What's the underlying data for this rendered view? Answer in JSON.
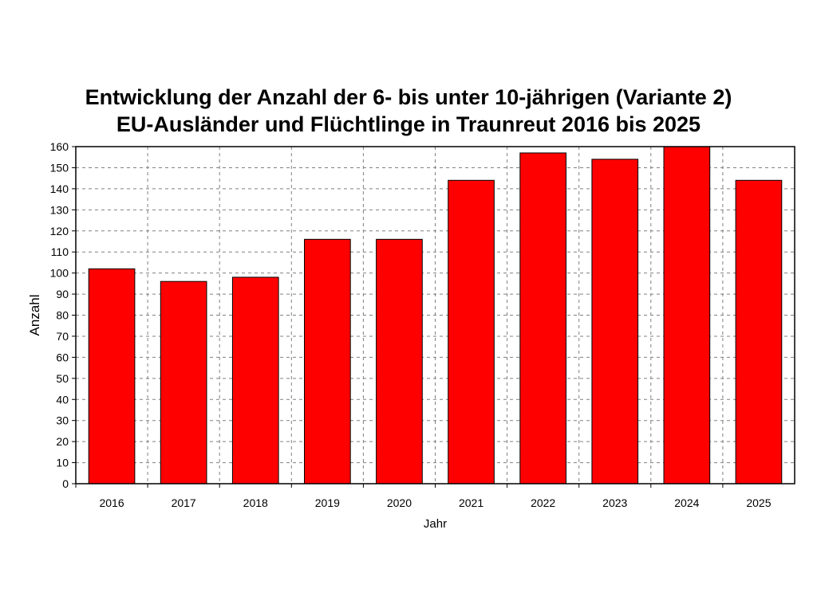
{
  "chart_data": {
    "type": "bar",
    "title": "Entwicklung der Anzahl der 6- bis unter 10-jährigen (Variante 2)",
    "subtitle": "EU-Ausländer und Flüchtlinge in Traunreut 2016 bis 2025",
    "xlabel": "Jahr",
    "ylabel": "Anzahl",
    "categories": [
      "2016",
      "2017",
      "2018",
      "2019",
      "2020",
      "2021",
      "2022",
      "2023",
      "2024",
      "2025"
    ],
    "values": [
      102,
      96,
      98,
      116,
      116,
      144,
      157,
      154,
      160,
      144
    ],
    "ylim": [
      0,
      160
    ],
    "yticks": [
      0,
      10,
      20,
      30,
      40,
      50,
      60,
      70,
      80,
      90,
      100,
      110,
      120,
      130,
      140,
      150,
      160
    ],
    "grid": true,
    "bar_color": "#ff0000",
    "bar_edge_color": "#000000",
    "grid_color": "#808080"
  }
}
